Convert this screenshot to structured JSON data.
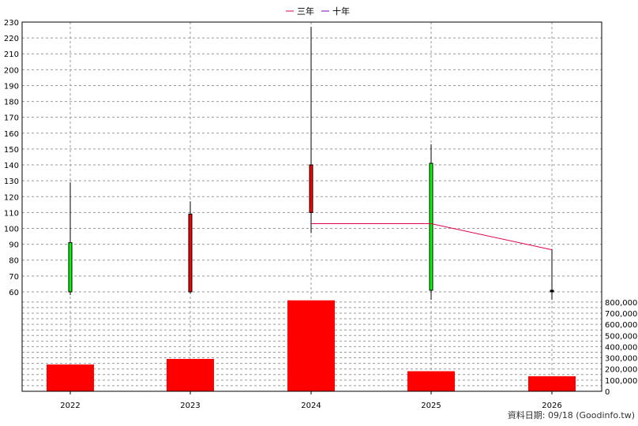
{
  "footer_text": "資料日期: 09/18 (Goodinfo.tw)",
  "chart_data": [
    {
      "type": "candlestick",
      "x": [
        "2022",
        "2023",
        "2024",
        "2025",
        "2026"
      ],
      "ylim": [
        55,
        230
      ],
      "y_ticks": [
        60,
        70,
        80,
        90,
        100,
        110,
        120,
        130,
        140,
        150,
        160,
        170,
        180,
        190,
        200,
        210,
        220,
        230
      ],
      "grid": true,
      "candles": [
        {
          "x": "2022",
          "open": 91,
          "high": 129,
          "low": 58,
          "close": 60,
          "color": "#00ff00"
        },
        {
          "x": "2023",
          "open": 60,
          "high": 117,
          "low": 59,
          "close": 109,
          "color": "#ff0000"
        },
        {
          "x": "2024",
          "open": 110,
          "high": 227,
          "low": 97,
          "close": 140,
          "color": "#ff0000"
        },
        {
          "x": "2025",
          "open": 141,
          "high": 153,
          "low": 55,
          "close": 61,
          "color": "#00ff00"
        },
        {
          "x": "2026",
          "open": 61,
          "high": 87,
          "low": 46,
          "close": 60,
          "color": "#000000"
        }
      ],
      "series": [
        {
          "name": "三年",
          "color": "#e0004e",
          "values": [
            null,
            null,
            103,
            103,
            86.5
          ]
        },
        {
          "name": "十年",
          "color": "#8000c0",
          "values": [
            null,
            null,
            null,
            null,
            null
          ]
        }
      ],
      "legend_position": "top-center"
    },
    {
      "type": "bar",
      "categories": [
        "2022",
        "2023",
        "2024",
        "2025",
        "2026"
      ],
      "values": [
        240000,
        290000,
        815000,
        180000,
        135000
      ],
      "color": "#ff0000",
      "ylim": [
        0,
        820000
      ],
      "y_ticks": [
        "0",
        "100,000",
        "200,000",
        "300,000",
        "400,000",
        "500,000",
        "600,000",
        "700,000",
        "800,000"
      ],
      "tick_values": [
        0,
        100000,
        200000,
        300000,
        400000,
        500000,
        600000,
        700000,
        800000
      ],
      "grid": true
    }
  ]
}
